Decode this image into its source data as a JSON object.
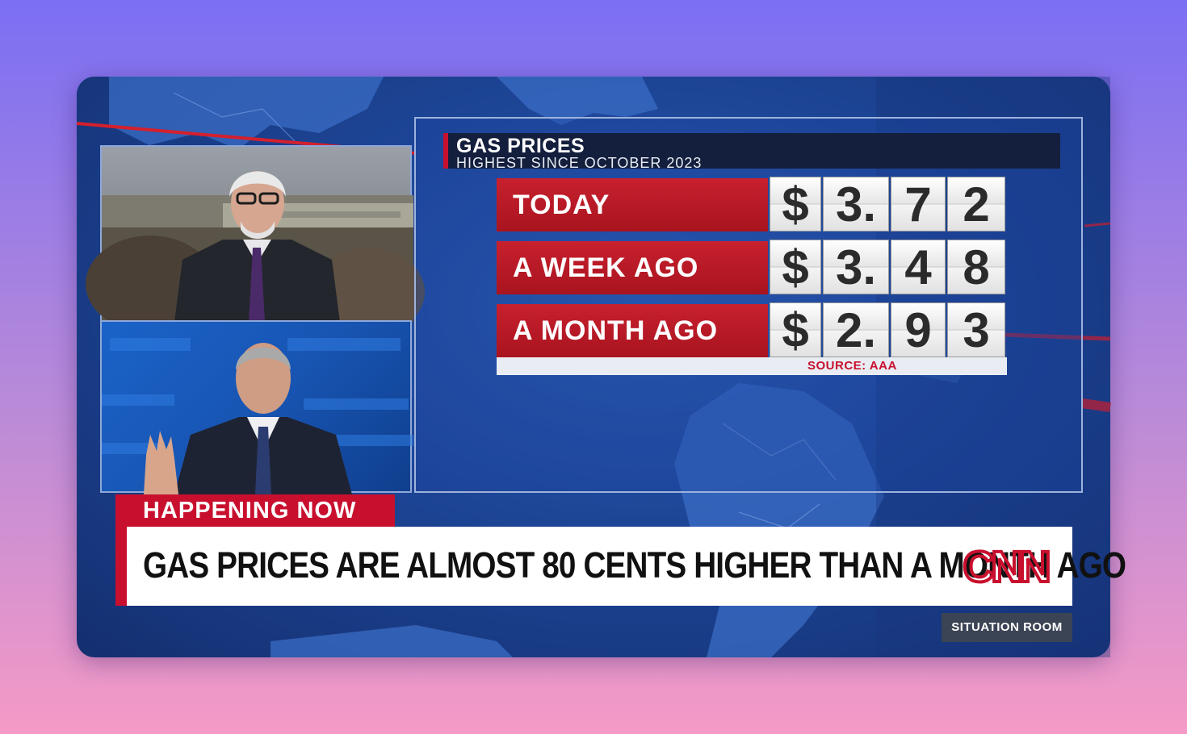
{
  "graphic": {
    "title": "GAS PRICES",
    "subtitle": "HIGHEST SINCE OCTOBER 2023",
    "rows": [
      {
        "label": "TODAY",
        "digits": [
          "$",
          "3.",
          "7",
          "2"
        ]
      },
      {
        "label": "A WEEK AGO",
        "digits": [
          "$",
          "3.",
          "4",
          "8"
        ]
      },
      {
        "label": "A MONTH AGO",
        "digits": [
          "$",
          "2.",
          "9",
          "3"
        ]
      }
    ],
    "source": "SOURCE: AAA"
  },
  "lower_third": {
    "tag": "HAPPENING NOW",
    "headline": "GAS PRICES ARE ALMOST 80 CENTS HIGHER THAN A MONTH AGO",
    "logo": "CNN",
    "show": "SITUATION ROOM"
  },
  "colors": {
    "cnn_red": "#c8102e",
    "studio_blue": "#1d4596",
    "header_navy": "#141f3d"
  },
  "icons": [
    "cnn-logo-icon"
  ]
}
